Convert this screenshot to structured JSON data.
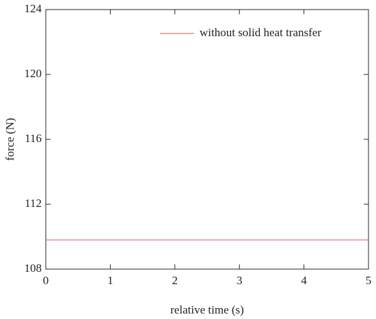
{
  "chart_data": {
    "type": "line",
    "x_label": "relative time (s)",
    "y_label": "force (N)",
    "x": [
      0,
      5
    ],
    "series": [
      {
        "name": "without solid heat transfer",
        "color": "#f07070",
        "values": [
          109.8,
          109.8
        ]
      }
    ],
    "xlim": [
      0,
      5
    ],
    "xticks": [
      0,
      1,
      2,
      3,
      4,
      5
    ],
    "ylim": [
      108,
      124
    ],
    "yticks": [
      108,
      112,
      116,
      120,
      124
    ],
    "grid": false,
    "legend": "upper right"
  }
}
